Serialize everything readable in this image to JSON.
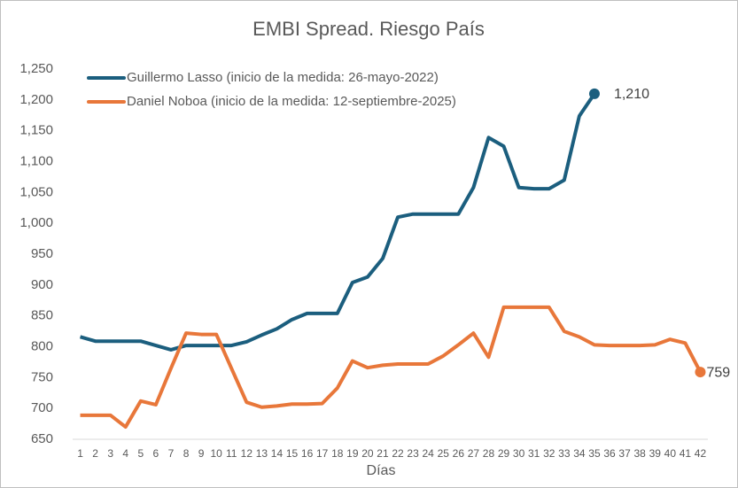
{
  "chart_data": {
    "type": "line",
    "title": "EMBI Spread. Riesgo País",
    "xlabel": "Días",
    "categories": [
      1,
      2,
      3,
      4,
      5,
      6,
      7,
      8,
      9,
      10,
      11,
      12,
      13,
      14,
      15,
      16,
      17,
      18,
      19,
      20,
      21,
      22,
      23,
      24,
      25,
      26,
      27,
      28,
      29,
      30,
      31,
      32,
      33,
      34,
      35,
      36,
      37,
      38,
      39,
      40,
      41,
      42
    ],
    "series": [
      {
        "name": "Guillermo Lasso (inicio de la medida: 26-mayo-2022)",
        "color": "#1b5e7e",
        "values": [
          816,
          809,
          809,
          809,
          809,
          802,
          795,
          802,
          802,
          802,
          802,
          808,
          819,
          829,
          844,
          854,
          854,
          854,
          904,
          913,
          943,
          1010,
          1015,
          1015,
          1015,
          1015,
          1058,
          1139,
          1125,
          1058,
          1056,
          1056,
          1070,
          1174,
          1210,
          null,
          null,
          null,
          null,
          null,
          null,
          null
        ],
        "value_labels": [
          null,
          null,
          null,
          null,
          null,
          null,
          null,
          null,
          null,
          null,
          null,
          null,
          null,
          null,
          null,
          null,
          null,
          null,
          null,
          null,
          null,
          null,
          null,
          null,
          null,
          null,
          null,
          null,
          null,
          null,
          null,
          null,
          null,
          null,
          "1,210",
          null,
          null,
          null,
          null,
          null,
          null,
          null
        ]
      },
      {
        "name": "Daniel Noboa (inicio de la medida: 12-septiembre-2025)",
        "color": "#e8773a",
        "values": [
          689,
          689,
          689,
          670,
          712,
          706,
          765,
          822,
          820,
          820,
          765,
          710,
          702,
          704,
          707,
          707,
          708,
          733,
          777,
          766,
          770,
          772,
          772,
          772,
          785,
          803,
          822,
          783,
          864,
          864,
          864,
          864,
          825,
          816,
          803,
          802,
          802,
          802,
          803,
          812,
          806,
          759
        ],
        "value_labels": [
          null,
          null,
          null,
          null,
          null,
          null,
          null,
          null,
          null,
          null,
          null,
          null,
          null,
          null,
          null,
          null,
          null,
          null,
          null,
          null,
          null,
          null,
          null,
          null,
          null,
          null,
          null,
          null,
          null,
          null,
          null,
          null,
          null,
          null,
          null,
          null,
          null,
          null,
          null,
          null,
          null,
          "759"
        ]
      }
    ],
    "ylim": [
      650,
      1250
    ],
    "yticks": [
      650,
      700,
      750,
      800,
      850,
      900,
      950,
      {
        "value": 1000,
        "label": "1,000"
      },
      {
        "value": 1050,
        "label": "1,050"
      },
      {
        "value": 1100,
        "label": "1,100"
      },
      {
        "value": 1150,
        "label": "1,150"
      },
      {
        "value": 1200,
        "label": "1,200"
      },
      {
        "value": 1250,
        "label": "1,250"
      }
    ],
    "grid": false,
    "legend": "top-left"
  }
}
